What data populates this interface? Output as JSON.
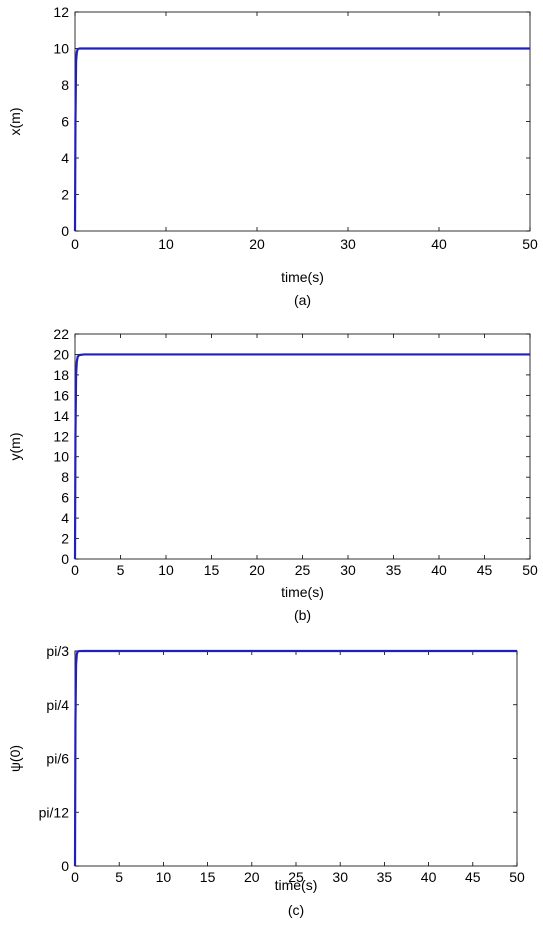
{
  "chart_data": [
    {
      "type": "line",
      "caption": "(a)",
      "xlabel": "time(s)",
      "ylabel": "x(m)",
      "xlim": [
        0,
        50
      ],
      "ylim": [
        0,
        12
      ],
      "xticks": [
        0,
        10,
        20,
        30,
        40,
        50
      ],
      "yticks": [
        0,
        2,
        4,
        6,
        8,
        10,
        12
      ],
      "yticklabels": [
        "0",
        "2",
        "4",
        "6",
        "8",
        "10",
        "12"
      ],
      "grid": false,
      "line_color": "#1f1fbf",
      "series": [
        {
          "x": [
            0,
            0.05,
            0.12,
            0.2,
            0.3,
            0.5,
            1,
            50
          ],
          "y": [
            0,
            6.0,
            9.3,
            9.8,
            9.97,
            10.0,
            10.0,
            10.0
          ]
        }
      ]
    },
    {
      "type": "line",
      "caption": "(b)",
      "xlabel": "time(s)",
      "ylabel": "y(m)",
      "xlim": [
        0,
        50
      ],
      "ylim": [
        0,
        22
      ],
      "xticks": [
        0,
        5,
        10,
        15,
        20,
        25,
        30,
        35,
        40,
        45,
        50
      ],
      "yticks": [
        0,
        2,
        4,
        6,
        8,
        10,
        12,
        14,
        16,
        18,
        20,
        22
      ],
      "yticklabels": [
        "0",
        "2",
        "4",
        "6",
        "8",
        "10",
        "12",
        "14",
        "16",
        "18",
        "20",
        "22"
      ],
      "grid": false,
      "line_color": "#1f1fbf",
      "series": [
        {
          "x": [
            0,
            0.05,
            0.12,
            0.2,
            0.3,
            0.5,
            1,
            50
          ],
          "y": [
            0,
            12.0,
            18.0,
            19.3,
            19.8,
            19.95,
            20.0,
            20.0
          ]
        }
      ]
    },
    {
      "type": "line",
      "caption": "(c)",
      "xlabel": "time(s)",
      "ylabel": "ψ(0)",
      "xlim": [
        0,
        50
      ],
      "ylim": [
        0,
        1.0472
      ],
      "xticks": [
        0,
        5,
        10,
        15,
        20,
        25,
        30,
        35,
        40,
        45,
        50
      ],
      "yticks": [
        0,
        0.2618,
        0.5236,
        0.7854,
        1.0472
      ],
      "yticklabels": [
        "0",
        "pi/12",
        "pi/6",
        "pi/4",
        "pi/3"
      ],
      "grid": false,
      "line_color": "#1f1fbf",
      "series": [
        {
          "x": [
            0,
            0.05,
            0.12,
            0.2,
            0.3,
            0.5,
            1,
            50
          ],
          "y": [
            0,
            0.7,
            0.98,
            1.03,
            1.045,
            1.047,
            1.0472,
            1.0472
          ]
        }
      ]
    }
  ]
}
